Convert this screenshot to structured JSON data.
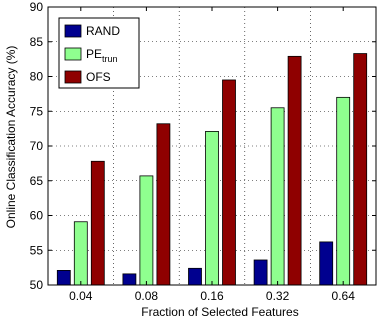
{
  "chart_data": {
    "type": "bar",
    "xlabel": "Fraction of Selected Features",
    "ylabel": "Online Classification Accuracy (%)",
    "categories": [
      "0.04",
      "0.08",
      "0.16",
      "0.32",
      "0.64"
    ],
    "ylim": [
      50,
      90
    ],
    "yticks": [
      50,
      55,
      60,
      65,
      70,
      75,
      80,
      85,
      90
    ],
    "grid": true,
    "legend_position": "top-left",
    "series": [
      {
        "name": "RAND",
        "name_main": "RAND",
        "name_sub": "",
        "color": "#00008f",
        "values": [
          52.1,
          51.6,
          52.4,
          53.6,
          56.2
        ]
      },
      {
        "name": "PE_trun",
        "name_main": "PE",
        "name_sub": "trun",
        "color": "#8fff8f",
        "values": [
          59.1,
          65.7,
          72.1,
          75.5,
          77.0
        ]
      },
      {
        "name": "OFS",
        "name_main": "OFS",
        "name_sub": "",
        "color": "#8f0000",
        "values": [
          67.8,
          73.2,
          79.5,
          82.9,
          83.3
        ]
      }
    ]
  }
}
